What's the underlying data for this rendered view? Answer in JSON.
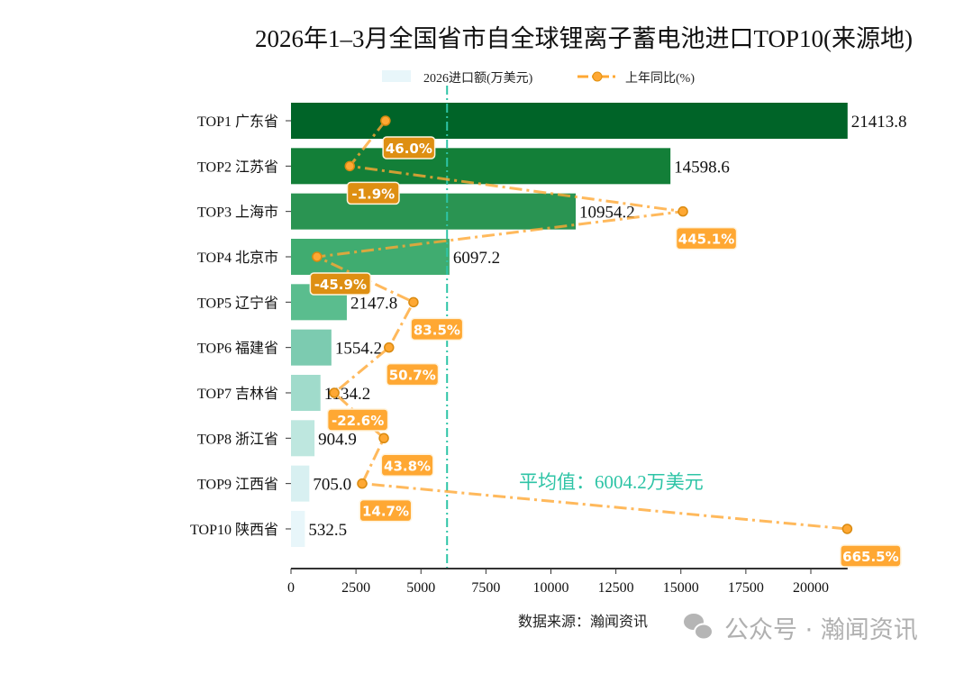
{
  "chart_data": {
    "type": "bar",
    "orientation": "horizontal",
    "title": "2026年1–3月全国省市自全球锂离子蓄电池进口TOP10(来源地)",
    "categories": [
      "TOP1 广东省",
      "TOP2 江苏省",
      "TOP3 上海市",
      "TOP4 北京市",
      "TOP5 辽宁省",
      "TOP6 福建省",
      "TOP7 吉林省",
      "TOP8 浙江省",
      "TOP9 江西省",
      "TOP10 陕西省"
    ],
    "series": [
      {
        "name": "2026进口额(万美元)",
        "type": "bar",
        "values": [
          21413.8,
          14598.6,
          10954.2,
          6097.2,
          2147.8,
          1554.2,
          1134.2,
          904.9,
          705.0,
          532.5
        ],
        "colors": [
          "#006428",
          "#137f38",
          "#2a9452",
          "#40ac70",
          "#5abd8e",
          "#7ccbb0",
          "#a0dbcb",
          "#bee7df",
          "#d8f0f1",
          "#e8f6fa"
        ]
      },
      {
        "name": "上年同比(%)",
        "type": "line",
        "values": [
          46.0,
          -1.9,
          445.1,
          -45.9,
          83.5,
          50.7,
          -22.6,
          43.8,
          14.7,
          665.5
        ],
        "labels": [
          "46.0%",
          "-1.9%",
          "445.1%",
          "-45.9%",
          "83.5%",
          "50.7%",
          "-22.6%",
          "43.8%",
          "14.7%",
          "665.5%"
        ],
        "color": "#ffa833"
      }
    ],
    "xticks": [
      "0",
      "2500",
      "5000",
      "7500",
      "10000",
      "12500",
      "15000",
      "17500",
      "20000"
    ],
    "xlim": [
      0,
      21413.8
    ],
    "xlabel": "数据来源：瀚闻资讯",
    "average": {
      "value": 6004.2,
      "label": "平均值：6004.2万美元",
      "color": "#2ec4a6"
    },
    "legend_placement": "top-center",
    "grid": false
  },
  "watermark": "公众号 · 瀚闻资讯"
}
